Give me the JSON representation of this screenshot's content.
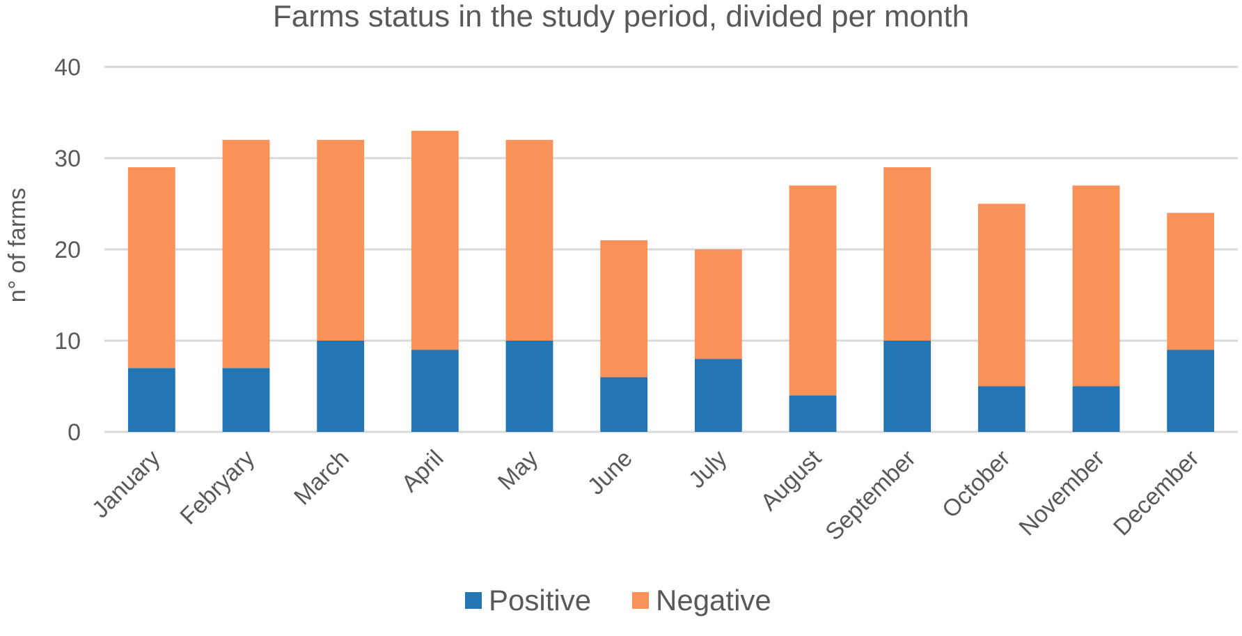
{
  "chart_data": {
    "type": "bar",
    "stacked": true,
    "title": "Farms status in the study period, divided per month",
    "xlabel": "",
    "ylabel": "n° of farms",
    "ylim": [
      0,
      40
    ],
    "yticks": [
      0,
      10,
      20,
      30,
      40
    ],
    "grid": true,
    "legend_position": "bottom",
    "categories": [
      "January",
      "Febryary",
      "March",
      "April",
      "May",
      "June",
      "July",
      "August",
      "September",
      "October",
      "November",
      "December"
    ],
    "series": [
      {
        "name": "Positive",
        "color": "#2375B4",
        "values": [
          7,
          7,
          10,
          9,
          10,
          6,
          8,
          4,
          10,
          5,
          5,
          9
        ]
      },
      {
        "name": "Negative",
        "color": "#F99159",
        "values": [
          22,
          25,
          22,
          24,
          22,
          15,
          12,
          23,
          19,
          20,
          22,
          15
        ]
      }
    ]
  }
}
